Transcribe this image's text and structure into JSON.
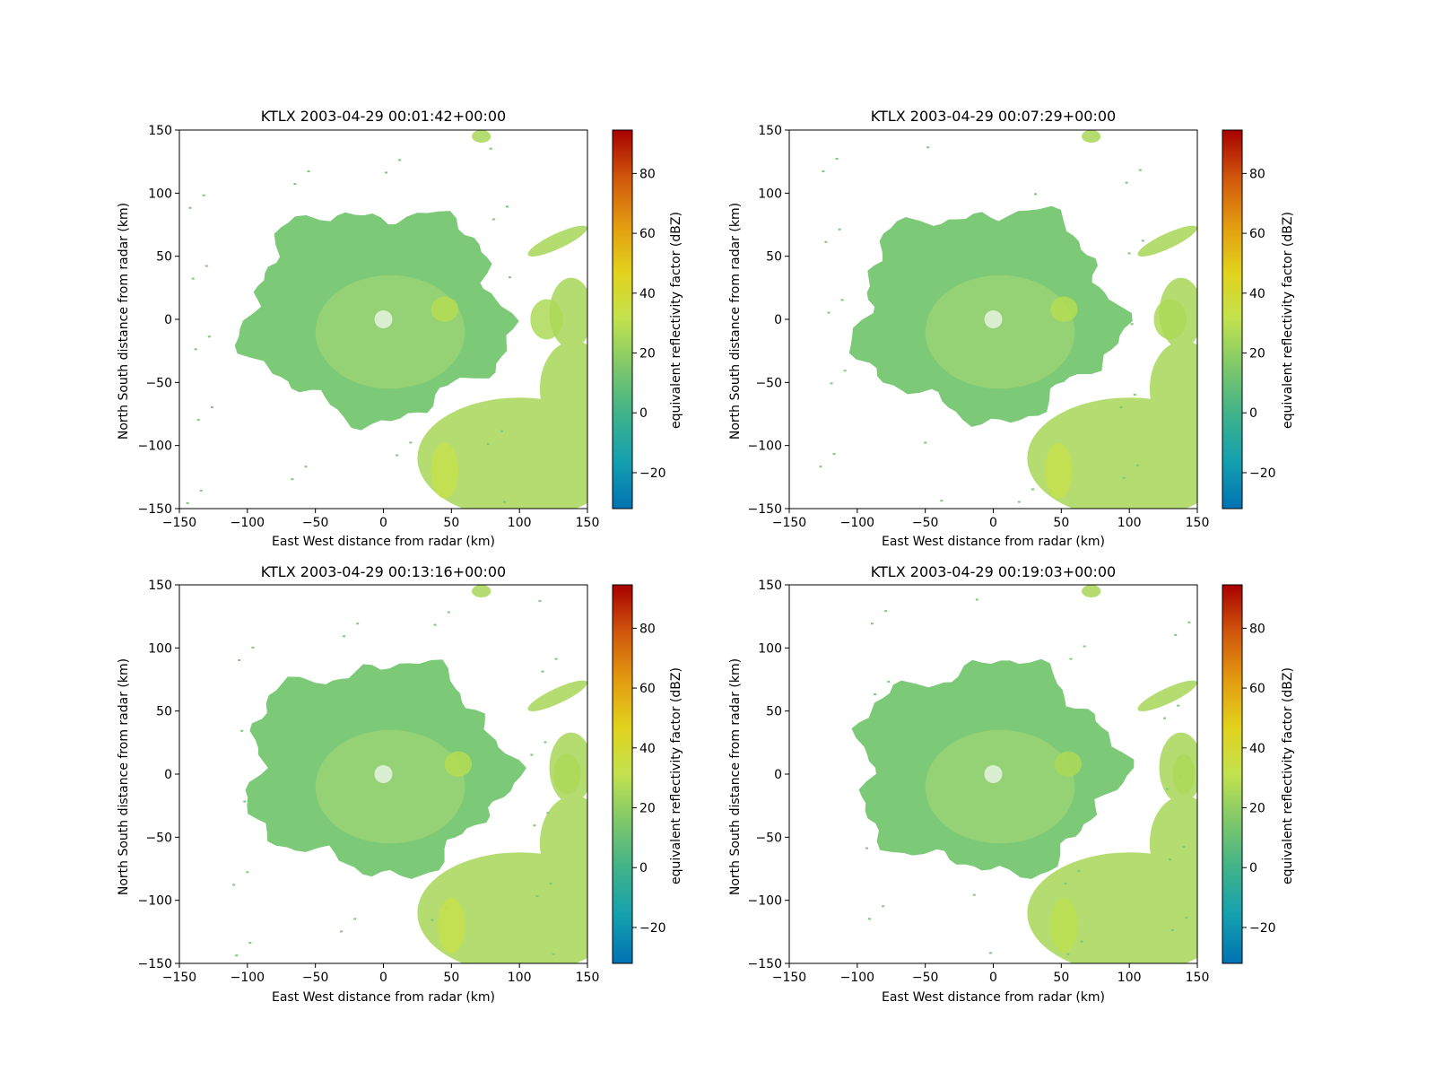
{
  "colors": {
    "background": "#ffffff",
    "cmap": [
      "#0072b2",
      "#14a0b0",
      "#3fb38a",
      "#7ec86a",
      "#c2e24e",
      "#e2d21c",
      "#e39a10",
      "#d0560c",
      "#a80000"
    ],
    "echo_base": "#7cc978",
    "echo_light": "#b4dc70",
    "echo_strong": "#d8d83a"
  },
  "chart_data": [
    {
      "type": "heatmap",
      "title": "KTLX 2003-04-29 00:01:42+00:00",
      "xlabel": "East West distance from radar (km)",
      "ylabel": "North South distance from radar (km)",
      "xlim": [
        -150,
        150
      ],
      "ylim": [
        -150,
        150
      ],
      "xticks": [
        -150,
        -100,
        -50,
        0,
        50,
        100,
        150
      ],
      "yticks": [
        -150,
        -100,
        -50,
        0,
        50,
        100,
        150
      ],
      "colorbar": {
        "label": "equivalent reflectivity factor (dBZ)",
        "range": [
          -32,
          94.5
        ],
        "ticks": [
          -20,
          0,
          20,
          40,
          60,
          80
        ]
      },
      "cells": [
        {
          "x": 45,
          "y": 8,
          "rx": 10,
          "ry": 10,
          "dbz": 28
        },
        {
          "x": 45,
          "y": -120,
          "rx": 10,
          "ry": 22,
          "dbz": 32
        },
        {
          "x": 120,
          "y": 0,
          "rx": 12,
          "ry": 16,
          "dbz": 26
        }
      ]
    },
    {
      "type": "heatmap",
      "title": "KTLX 2003-04-29 00:07:29+00:00",
      "xlabel": "East West distance from radar (km)",
      "ylabel": "North South distance from radar (km)",
      "xlim": [
        -150,
        150
      ],
      "ylim": [
        -150,
        150
      ],
      "xticks": [
        -150,
        -100,
        -50,
        0,
        50,
        100,
        150
      ],
      "yticks": [
        -150,
        -100,
        -50,
        0,
        50,
        100,
        150
      ],
      "colorbar": {
        "label": "equivalent reflectivity factor (dBZ)",
        "range": [
          -32,
          94.5
        ],
        "ticks": [
          -20,
          0,
          20,
          40,
          60,
          80
        ]
      },
      "cells": [
        {
          "x": 52,
          "y": 8,
          "rx": 10,
          "ry": 10,
          "dbz": 28
        },
        {
          "x": 48,
          "y": -120,
          "rx": 10,
          "ry": 22,
          "dbz": 32
        },
        {
          "x": 130,
          "y": 0,
          "rx": 12,
          "ry": 16,
          "dbz": 26
        }
      ]
    },
    {
      "type": "heatmap",
      "title": "KTLX 2003-04-29 00:13:16+00:00",
      "xlabel": "East West distance from radar (km)",
      "ylabel": "North South distance from radar (km)",
      "xlim": [
        -150,
        150
      ],
      "ylim": [
        -150,
        150
      ],
      "xticks": [
        -150,
        -100,
        -50,
        0,
        50,
        100,
        150
      ],
      "yticks": [
        -150,
        -100,
        -50,
        0,
        50,
        100,
        150
      ],
      "colorbar": {
        "label": "equivalent reflectivity factor (dBZ)",
        "range": [
          -32,
          94.5
        ],
        "ticks": [
          -20,
          0,
          20,
          40,
          60,
          80
        ]
      },
      "cells": [
        {
          "x": 55,
          "y": 8,
          "rx": 10,
          "ry": 10,
          "dbz": 28
        },
        {
          "x": 50,
          "y": -120,
          "rx": 10,
          "ry": 22,
          "dbz": 32
        },
        {
          "x": 135,
          "y": 0,
          "rx": 10,
          "ry": 16,
          "dbz": 26
        }
      ]
    },
    {
      "type": "heatmap",
      "title": "KTLX 2003-04-29 00:19:03+00:00",
      "xlabel": "East West distance from radar (km)",
      "ylabel": "North South distance from radar (km)",
      "xlim": [
        -150,
        150
      ],
      "ylim": [
        -150,
        150
      ],
      "xticks": [
        -150,
        -100,
        -50,
        0,
        50,
        100,
        150
      ],
      "yticks": [
        -150,
        -100,
        -50,
        0,
        50,
        100,
        150
      ],
      "colorbar": {
        "label": "equivalent reflectivity factor (dBZ)",
        "range": [
          -32,
          94.5
        ],
        "ticks": [
          -20,
          0,
          20,
          40,
          60,
          80
        ]
      },
      "cells": [
        {
          "x": 55,
          "y": 8,
          "rx": 10,
          "ry": 10,
          "dbz": 26
        },
        {
          "x": 52,
          "y": -120,
          "rx": 10,
          "ry": 22,
          "dbz": 30
        },
        {
          "x": 140,
          "y": 0,
          "rx": 8,
          "ry": 16,
          "dbz": 26
        }
      ]
    }
  ]
}
